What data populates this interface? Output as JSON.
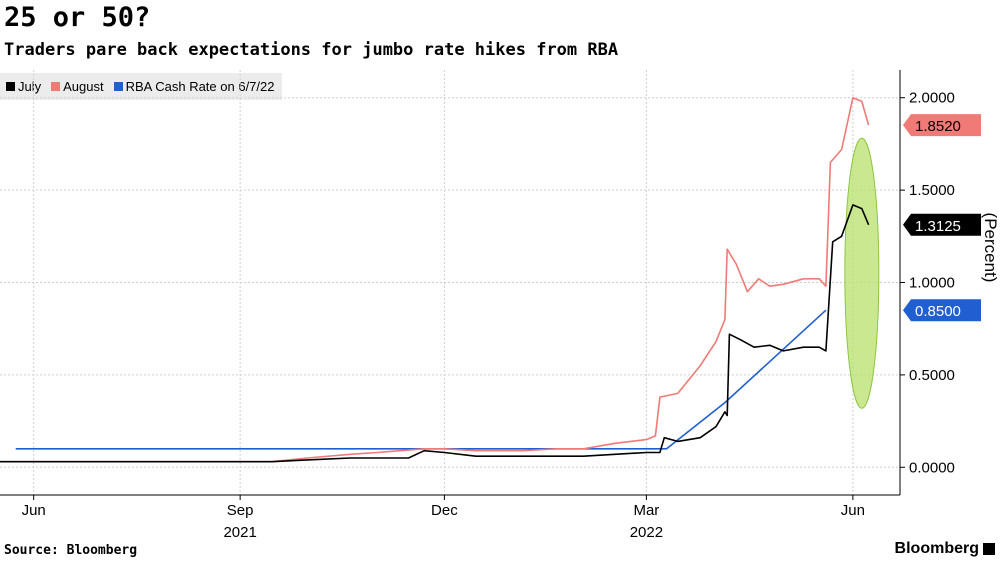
{
  "title": "25 or 50?",
  "subtitle": "Traders pare back expectations for jumbo rate hikes from RBA",
  "source": "Source: Bloomberg",
  "brand": "Bloomberg",
  "colors": {
    "july": "#000000",
    "august": "#f07a75",
    "cash": "#1f5fd1",
    "highlight": "#b8e06a"
  },
  "chart_data": {
    "type": "line",
    "xlabel": "",
    "ylabel": "(Percent)",
    "ylim": [
      -0.15,
      2.15
    ],
    "yticks": [
      0.0,
      0.5,
      1.0,
      1.5,
      2.0
    ],
    "ytick_labels": [
      "0.0000",
      "0.5000",
      "1.0000",
      "1.5000",
      "2.0000"
    ],
    "x_range": [
      "2021-05-17",
      "2022-06-22"
    ],
    "xticks": [
      {
        "date": "2021-06-01",
        "label": "Jun"
      },
      {
        "date": "2021-09-01",
        "label": "Sep"
      },
      {
        "date": "2021-12-01",
        "label": "Dec"
      },
      {
        "date": "2022-03-01",
        "label": "Mar"
      },
      {
        "date": "2022-06-01",
        "label": "Jun"
      }
    ],
    "year_labels": [
      {
        "date": "2021-09-01",
        "label": "2021"
      },
      {
        "date": "2022-03-01",
        "label": "2022"
      }
    ],
    "legend_position": "top-left",
    "grid": true,
    "series": [
      {
        "name": "July",
        "color": "#000000",
        "last_value_label": "1.3125",
        "points": [
          [
            "2021-05-17",
            0.03
          ],
          [
            "2021-06-15",
            0.03
          ],
          [
            "2021-07-15",
            0.03
          ],
          [
            "2021-08-15",
            0.03
          ],
          [
            "2021-09-15",
            0.03
          ],
          [
            "2021-10-01",
            0.04
          ],
          [
            "2021-10-20",
            0.05
          ],
          [
            "2021-11-15",
            0.05
          ],
          [
            "2021-11-22",
            0.09
          ],
          [
            "2021-12-01",
            0.08
          ],
          [
            "2021-12-15",
            0.06
          ],
          [
            "2022-01-05",
            0.06
          ],
          [
            "2022-01-20",
            0.06
          ],
          [
            "2022-02-01",
            0.06
          ],
          [
            "2022-02-15",
            0.07
          ],
          [
            "2022-03-01",
            0.08
          ],
          [
            "2022-03-07",
            0.08
          ],
          [
            "2022-03-09",
            0.16
          ],
          [
            "2022-03-15",
            0.14
          ],
          [
            "2022-03-25",
            0.16
          ],
          [
            "2022-04-01",
            0.22
          ],
          [
            "2022-04-05",
            0.3
          ],
          [
            "2022-04-06",
            0.28
          ],
          [
            "2022-04-07",
            0.72
          ],
          [
            "2022-04-12",
            0.69
          ],
          [
            "2022-04-18",
            0.65
          ],
          [
            "2022-04-25",
            0.66
          ],
          [
            "2022-05-01",
            0.63
          ],
          [
            "2022-05-10",
            0.65
          ],
          [
            "2022-05-17",
            0.65
          ],
          [
            "2022-05-20",
            0.63
          ],
          [
            "2022-05-23",
            1.22
          ],
          [
            "2022-05-27",
            1.25
          ],
          [
            "2022-06-01",
            1.42
          ],
          [
            "2022-06-05",
            1.4
          ],
          [
            "2022-06-08",
            1.3125
          ]
        ]
      },
      {
        "name": "August",
        "color": "#f07a75",
        "last_value_label": "1.8520",
        "points": [
          [
            "2021-05-17",
            0.03
          ],
          [
            "2021-06-15",
            0.03
          ],
          [
            "2021-07-15",
            0.03
          ],
          [
            "2021-08-15",
            0.03
          ],
          [
            "2021-09-15",
            0.03
          ],
          [
            "2021-10-01",
            0.05
          ],
          [
            "2021-10-20",
            0.07
          ],
          [
            "2021-11-01",
            0.08
          ],
          [
            "2021-11-22",
            0.1
          ],
          [
            "2021-12-01",
            0.1
          ],
          [
            "2021-12-15",
            0.09
          ],
          [
            "2022-01-05",
            0.09
          ],
          [
            "2022-01-20",
            0.1
          ],
          [
            "2022-02-01",
            0.1
          ],
          [
            "2022-02-15",
            0.13
          ],
          [
            "2022-03-01",
            0.15
          ],
          [
            "2022-03-05",
            0.17
          ],
          [
            "2022-03-07",
            0.38
          ],
          [
            "2022-03-15",
            0.4
          ],
          [
            "2022-03-25",
            0.55
          ],
          [
            "2022-04-01",
            0.68
          ],
          [
            "2022-04-05",
            0.8
          ],
          [
            "2022-04-06",
            1.18
          ],
          [
            "2022-04-10",
            1.1
          ],
          [
            "2022-04-15",
            0.95
          ],
          [
            "2022-04-20",
            1.02
          ],
          [
            "2022-04-25",
            0.98
          ],
          [
            "2022-05-01",
            0.99
          ],
          [
            "2022-05-10",
            1.02
          ],
          [
            "2022-05-17",
            1.02
          ],
          [
            "2022-05-20",
            0.98
          ],
          [
            "2022-05-22",
            1.65
          ],
          [
            "2022-05-27",
            1.72
          ],
          [
            "2022-06-01",
            2.0
          ],
          [
            "2022-06-05",
            1.98
          ],
          [
            "2022-06-08",
            1.852
          ]
        ]
      },
      {
        "name": "RBA Cash Rate on 6/7/22",
        "color": "#1f5fd1",
        "last_value_label": "0.8500",
        "points": [
          [
            "2021-05-24",
            0.1
          ],
          [
            "2022-03-10",
            0.1
          ],
          [
            "2022-04-05",
            0.35
          ],
          [
            "2022-05-20",
            0.85
          ]
        ]
      }
    ],
    "annotations": [
      {
        "type": "ellipse",
        "date_center": "2022-06-05",
        "y_center": 1.05,
        "color": "#b8e06a"
      }
    ]
  }
}
